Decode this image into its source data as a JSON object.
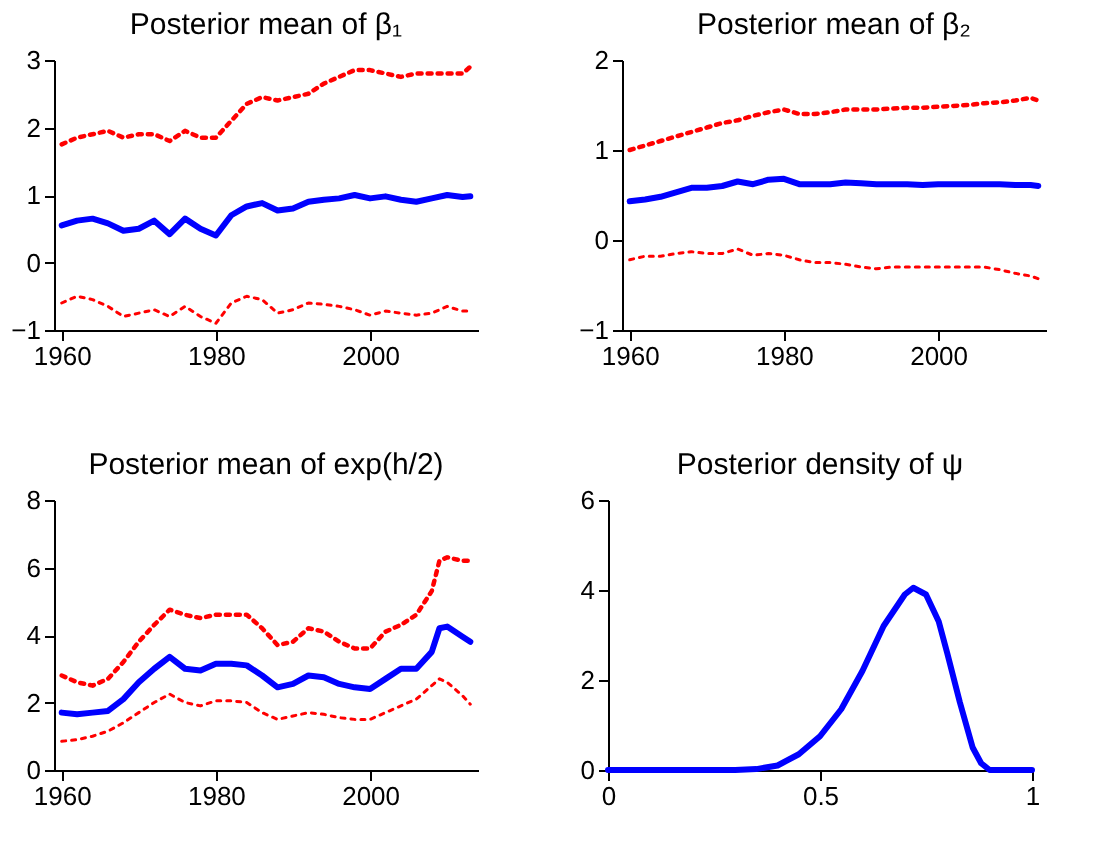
{
  "chart_data": [
    {
      "type": "line",
      "title": "Posterior mean of β₁",
      "x": [
        1960,
        1962,
        1964,
        1966,
        1968,
        1970,
        1972,
        1974,
        1976,
        1978,
        1980,
        1982,
        1984,
        1986,
        1988,
        1990,
        1992,
        1994,
        1996,
        1998,
        2000,
        2002,
        2004,
        2006,
        2008,
        2010,
        2012,
        2013
      ],
      "xlim": [
        1959,
        2014
      ],
      "xticks": [
        1960,
        1980,
        2000
      ],
      "ylim": [
        -1,
        3
      ],
      "yticks": [
        -1,
        0,
        1,
        2,
        3
      ],
      "grid": false,
      "legend": false,
      "marker": "none",
      "series": [
        {
          "color": "#0000ff",
          "line_style": "solid",
          "values": [
            0.55,
            0.62,
            0.65,
            0.58,
            0.47,
            0.5,
            0.62,
            0.42,
            0.65,
            0.5,
            0.4,
            0.7,
            0.83,
            0.88,
            0.77,
            0.8,
            0.9,
            0.93,
            0.95,
            1.0,
            0.95,
            0.98,
            0.93,
            0.9,
            0.95,
            1.0,
            0.97,
            0.98
          ]
        },
        {
          "color": "#ff0000",
          "line_style": "dotted",
          "values": [
            1.75,
            1.85,
            1.9,
            1.95,
            1.85,
            1.9,
            1.9,
            1.8,
            1.95,
            1.85,
            1.85,
            2.1,
            2.35,
            2.45,
            2.4,
            2.45,
            2.5,
            2.65,
            2.75,
            2.85,
            2.85,
            2.8,
            2.75,
            2.8,
            2.8,
            2.8,
            2.8,
            2.9
          ]
        },
        {
          "color": "#ff0000",
          "line_style": "dotted",
          "values": [
            -0.6,
            -0.5,
            -0.55,
            -0.65,
            -0.8,
            -0.75,
            -0.7,
            -0.8,
            -0.65,
            -0.8,
            -0.9,
            -0.6,
            -0.5,
            -0.55,
            -0.75,
            -0.7,
            -0.6,
            -0.62,
            -0.65,
            -0.7,
            -0.78,
            -0.72,
            -0.75,
            -0.78,
            -0.75,
            -0.65,
            -0.72,
            -0.72
          ]
        }
      ]
    },
    {
      "type": "line",
      "title": "Posterior mean of β₂",
      "x": [
        1960,
        1962,
        1964,
        1966,
        1968,
        1970,
        1972,
        1974,
        1976,
        1978,
        1980,
        1982,
        1984,
        1986,
        1988,
        1990,
        1992,
        1994,
        1996,
        1998,
        2000,
        2002,
        2004,
        2006,
        2008,
        2010,
        2012,
        2013
      ],
      "xlim": [
        1959,
        2014
      ],
      "xticks": [
        1960,
        1980,
        2000
      ],
      "ylim": [
        -1,
        2
      ],
      "yticks": [
        -1,
        0,
        1,
        2
      ],
      "grid": false,
      "legend": false,
      "marker": "none",
      "series": [
        {
          "color": "#0000ff",
          "line_style": "solid",
          "values": [
            0.43,
            0.45,
            0.48,
            0.53,
            0.58,
            0.58,
            0.6,
            0.65,
            0.62,
            0.67,
            0.68,
            0.62,
            0.62,
            0.62,
            0.64,
            0.63,
            0.62,
            0.62,
            0.62,
            0.61,
            0.62,
            0.62,
            0.62,
            0.62,
            0.62,
            0.61,
            0.61,
            0.6
          ]
        },
        {
          "color": "#ff0000",
          "line_style": "dotted",
          "values": [
            1.0,
            1.05,
            1.1,
            1.15,
            1.2,
            1.25,
            1.3,
            1.33,
            1.38,
            1.42,
            1.45,
            1.4,
            1.4,
            1.42,
            1.45,
            1.45,
            1.45,
            1.46,
            1.47,
            1.47,
            1.48,
            1.49,
            1.5,
            1.52,
            1.53,
            1.55,
            1.58,
            1.55
          ]
        },
        {
          "color": "#ff0000",
          "line_style": "dotted",
          "values": [
            -0.22,
            -0.18,
            -0.18,
            -0.15,
            -0.13,
            -0.15,
            -0.15,
            -0.1,
            -0.17,
            -0.15,
            -0.17,
            -0.22,
            -0.25,
            -0.25,
            -0.27,
            -0.3,
            -0.32,
            -0.3,
            -0.3,
            -0.3,
            -0.3,
            -0.3,
            -0.3,
            -0.3,
            -0.33,
            -0.37,
            -0.4,
            -0.43
          ]
        }
      ]
    },
    {
      "type": "line",
      "title": "Posterior mean of exp(h/2)",
      "x": [
        1960,
        1962,
        1964,
        1966,
        1968,
        1970,
        1972,
        1974,
        1976,
        1978,
        1980,
        1982,
        1984,
        1986,
        1988,
        1990,
        1992,
        1994,
        1996,
        1998,
        2000,
        2002,
        2004,
        2006,
        2008,
        2009,
        2010,
        2012,
        2013
      ],
      "xlim": [
        1959,
        2014
      ],
      "xticks": [
        1960,
        1980,
        2000
      ],
      "ylim": [
        0,
        8
      ],
      "yticks": [
        0,
        2,
        4,
        6,
        8
      ],
      "grid": false,
      "legend": false,
      "marker": "none",
      "series": [
        {
          "color": "#0000ff",
          "line_style": "solid",
          "values": [
            1.7,
            1.65,
            1.7,
            1.75,
            2.1,
            2.6,
            3.0,
            3.35,
            3.0,
            2.95,
            3.15,
            3.15,
            3.1,
            2.8,
            2.45,
            2.55,
            2.8,
            2.75,
            2.55,
            2.45,
            2.4,
            2.7,
            3.0,
            3.0,
            3.5,
            4.2,
            4.25,
            3.95,
            3.8
          ]
        },
        {
          "color": "#ff0000",
          "line_style": "dotted",
          "values": [
            2.8,
            2.6,
            2.5,
            2.7,
            3.2,
            3.8,
            4.3,
            4.75,
            4.6,
            4.5,
            4.6,
            4.6,
            4.6,
            4.2,
            3.7,
            3.8,
            4.2,
            4.1,
            3.8,
            3.6,
            3.6,
            4.1,
            4.3,
            4.6,
            5.3,
            6.2,
            6.3,
            6.2,
            6.2
          ]
        },
        {
          "color": "#ff0000",
          "line_style": "dotted",
          "values": [
            0.85,
            0.9,
            1.0,
            1.15,
            1.4,
            1.7,
            2.0,
            2.25,
            2.0,
            1.9,
            2.05,
            2.05,
            2.0,
            1.7,
            1.5,
            1.6,
            1.7,
            1.65,
            1.55,
            1.5,
            1.5,
            1.7,
            1.9,
            2.1,
            2.5,
            2.7,
            2.6,
            2.2,
            1.95
          ]
        }
      ]
    },
    {
      "type": "line",
      "title": "Posterior density of ψ",
      "x": [
        0,
        0.3,
        0.35,
        0.4,
        0.45,
        0.5,
        0.55,
        0.6,
        0.65,
        0.7,
        0.72,
        0.75,
        0.78,
        0.8,
        0.83,
        0.86,
        0.88,
        0.9,
        0.95,
        1
      ],
      "xlim": [
        0,
        1
      ],
      "xticks": [
        0,
        0.5,
        1
      ],
      "ylim": [
        0,
        6
      ],
      "yticks": [
        0,
        2,
        4,
        6
      ],
      "grid": false,
      "legend": false,
      "marker": "none",
      "series": [
        {
          "color": "#0000ff",
          "line_style": "solid",
          "values": [
            0,
            0,
            0.02,
            0.1,
            0.35,
            0.75,
            1.35,
            2.2,
            3.2,
            3.9,
            4.05,
            3.9,
            3.3,
            2.6,
            1.5,
            0.5,
            0.15,
            0,
            0,
            0
          ]
        }
      ]
    }
  ]
}
